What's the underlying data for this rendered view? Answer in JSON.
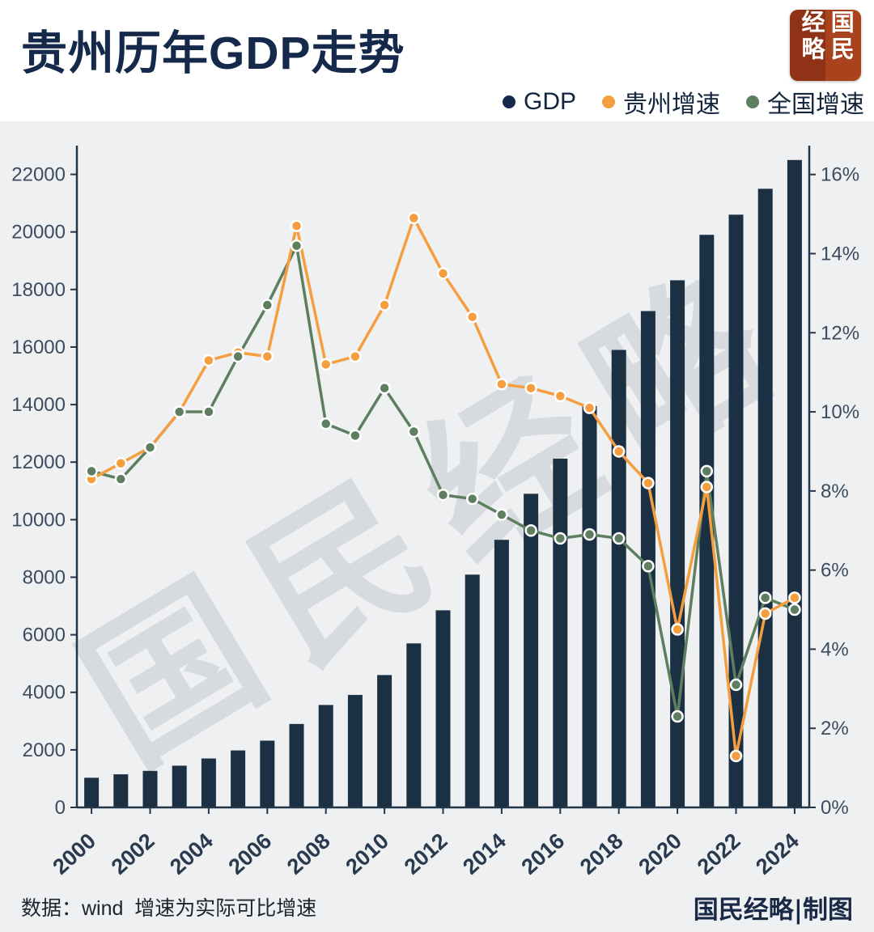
{
  "header": {
    "title": "贵州历年GDP走势",
    "logo_text": "国民经略"
  },
  "legend": [
    {
      "label": "GDP",
      "color": "#16294d"
    },
    {
      "label": "贵州增速",
      "color": "#f59e3f"
    },
    {
      "label": "全国增速",
      "color": "#5e7e60"
    }
  ],
  "watermark": "国民经略",
  "footer": {
    "source": "数据：wind  增速为实际可比增速",
    "credit": "国民经略|制图"
  },
  "chart_data": {
    "type": "bar",
    "title": "贵州历年GDP走势",
    "categories": [
      2000,
      2001,
      2002,
      2003,
      2004,
      2005,
      2006,
      2007,
      2008,
      2009,
      2010,
      2011,
      2012,
      2013,
      2014,
      2015,
      2016,
      2017,
      2018,
      2019,
      2020,
      2021,
      2022,
      2023,
      2024
    ],
    "series": [
      {
        "name": "GDP",
        "type": "bar",
        "axis": "left",
        "values": [
          1030,
          1150,
          1270,
          1450,
          1700,
          1980,
          2320,
          2900,
          3560,
          3910,
          4600,
          5700,
          6850,
          8090,
          9300,
          10900,
          12120,
          13950,
          15900,
          17250,
          18320,
          19900,
          20600,
          21500,
          22500
        ]
      },
      {
        "name": "贵州增速",
        "type": "line",
        "axis": "right",
        "values": [
          8.3,
          8.7,
          9.1,
          10.0,
          11.3,
          11.5,
          11.4,
          14.7,
          11.2,
          11.4,
          12.7,
          14.9,
          13.5,
          12.4,
          10.7,
          10.6,
          10.4,
          10.1,
          9.0,
          8.2,
          4.5,
          8.1,
          1.3,
          4.9,
          5.3
        ]
      },
      {
        "name": "全国增速",
        "type": "line",
        "axis": "right",
        "values": [
          8.5,
          8.3,
          9.1,
          10.0,
          10.0,
          11.4,
          12.7,
          14.2,
          9.7,
          9.4,
          10.6,
          9.5,
          7.9,
          7.8,
          7.4,
          7.0,
          6.8,
          6.9,
          6.8,
          6.1,
          2.3,
          8.5,
          3.1,
          5.3,
          5.0
        ]
      }
    ],
    "left_axis": {
      "min": 0,
      "max": 23000,
      "ticks": [
        0,
        2000,
        4000,
        6000,
        8000,
        10000,
        12000,
        14000,
        16000,
        18000,
        20000,
        22000
      ]
    },
    "right_axis": {
      "min": 0,
      "max": 16.73,
      "ticks": [
        0,
        2,
        4,
        6,
        8,
        10,
        12,
        14,
        16
      ],
      "suffix": "%"
    },
    "x_label_every": 2,
    "grid": false,
    "legend_position": "top-right",
    "colors": {
      "bar": "#1c3044",
      "guizhou": "#f59e3f",
      "national": "#5e7e60",
      "axis": "#223649",
      "y_text": "#3c4c5e",
      "x_text": "#2a3a4e",
      "watermark": "#c9cdd3"
    }
  }
}
